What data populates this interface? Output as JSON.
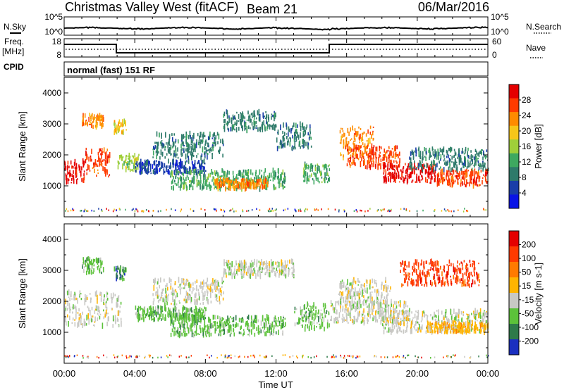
{
  "header": {
    "station": "Christmas Valley West (fitACF)",
    "beam": "Beam 21",
    "date": "06/Mar/2016"
  },
  "side_labels": {
    "nsky": "N.Sky",
    "nsearch": "N.Search",
    "freq": "Freq.",
    "freq_unit": "[MHz]",
    "nave": "Nave",
    "cpid": "CPID",
    "cpid_value": "normal (fast) 151 RF"
  },
  "noise_axis": {
    "left_ticks": [
      "10^5",
      "10^0"
    ],
    "right_ticks": [
      "10^5",
      "10^0"
    ]
  },
  "freq_axis": {
    "left_ticks": [
      "18",
      "8"
    ],
    "right_ticks": [
      "60",
      "0"
    ]
  },
  "chart_data": [
    {
      "type": "heatmap",
      "title": "",
      "quantity": "Power",
      "colorbar_label": "Power [dB]",
      "colorbar_ticks": [
        "28",
        "24",
        "20",
        "16",
        "12",
        "8",
        "4"
      ],
      "ylabel": "Slant Range [km]",
      "xlabel": "",
      "xlim": [
        0,
        24
      ],
      "ylim": [
        0,
        4500
      ],
      "y_ticks": [
        "4000",
        "3000",
        "2000",
        "1000"
      ],
      "colors": [
        "#0a14e6",
        "#1a3ea8",
        "#2e7a6a",
        "#3ea860",
        "#9fcf3a",
        "#f6c619",
        "#ff8b00",
        "#ff3b00",
        "#e40000"
      ],
      "echo_bands": [
        {
          "t": [
            0.0,
            1.2
          ],
          "range": [
            1100,
            1800
          ],
          "level": 8
        },
        {
          "t": [
            1.2,
            2.6
          ],
          "range": [
            1300,
            2200
          ],
          "level": 7
        },
        {
          "t": [
            1.0,
            2.2
          ],
          "range": [
            2900,
            3300
          ],
          "level": 6
        },
        {
          "t": [
            2.8,
            3.5
          ],
          "range": [
            2700,
            3100
          ],
          "level": 5
        },
        {
          "t": [
            3.0,
            4.2
          ],
          "range": [
            1500,
            2000
          ],
          "level": 4
        },
        {
          "t": [
            4.0,
            8.0
          ],
          "range": [
            1400,
            1800
          ],
          "level": 1
        },
        {
          "t": [
            6.0,
            12.5
          ],
          "range": [
            900,
            1500
          ],
          "level": 3
        },
        {
          "t": [
            8.5,
            11.5
          ],
          "range": [
            900,
            1200
          ],
          "level": 6
        },
        {
          "t": [
            5.0,
            9.0
          ],
          "range": [
            1900,
            2700
          ],
          "level": 2
        },
        {
          "t": [
            9.0,
            12.0
          ],
          "range": [
            2800,
            3400
          ],
          "level": 2
        },
        {
          "t": [
            12.0,
            14.0
          ],
          "range": [
            2200,
            3000
          ],
          "level": 2
        },
        {
          "t": [
            13.5,
            15.0
          ],
          "range": [
            1100,
            1700
          ],
          "level": 3
        },
        {
          "t": [
            15.6,
            17.5
          ],
          "range": [
            1900,
            2900
          ],
          "level": 6
        },
        {
          "t": [
            16.0,
            19.0
          ],
          "range": [
            1600,
            2300
          ],
          "level": 7
        },
        {
          "t": [
            18.0,
            21.0
          ],
          "range": [
            1100,
            1700
          ],
          "level": 8
        },
        {
          "t": [
            21.0,
            24.0
          ],
          "range": [
            1000,
            1500
          ],
          "level": 7
        },
        {
          "t": [
            19.5,
            24.0
          ],
          "range": [
            1500,
            2200
          ],
          "level": 2
        }
      ]
    },
    {
      "type": "heatmap",
      "title": "",
      "quantity": "Velocity",
      "colorbar_label": "Velocity [m s-1]",
      "colorbar_ticks": [
        "200",
        "100",
        "50",
        "15",
        "-15",
        "-50",
        "-100",
        "-200"
      ],
      "ylabel": "Slant Range [km]",
      "xlabel": "Time UT",
      "xlim": [
        0,
        24
      ],
      "ylim": [
        0,
        4500
      ],
      "y_ticks": [
        "4000",
        "3000",
        "2000",
        "1000"
      ],
      "x_ticks": [
        "00:00",
        "04:00",
        "08:00",
        "12:00",
        "16:00",
        "20:00",
        "00:00"
      ],
      "colors": [
        "#1a2fc0",
        "#2e7a4a",
        "#5cc23a",
        "#c8c8c4",
        "#ffb400",
        "#ff7a00",
        "#ff3a00",
        "#e40000"
      ],
      "echo_bands": [
        {
          "t": [
            0.0,
            3.2
          ],
          "range": [
            1200,
            2300
          ],
          "level": 3
        },
        {
          "t": [
            1.0,
            2.2
          ],
          "range": [
            2900,
            3400
          ],
          "level": 2
        },
        {
          "t": [
            2.8,
            3.5
          ],
          "range": [
            2700,
            3100
          ],
          "level": 1
        },
        {
          "t": [
            4.0,
            8.0
          ],
          "range": [
            1400,
            1800
          ],
          "level": 2
        },
        {
          "t": [
            6.0,
            12.5
          ],
          "range": [
            900,
            1500
          ],
          "level": 2
        },
        {
          "t": [
            5.0,
            9.0
          ],
          "range": [
            1900,
            2700
          ],
          "level": 3
        },
        {
          "t": [
            9.0,
            13.0
          ],
          "range": [
            2800,
            3300
          ],
          "level": 3
        },
        {
          "t": [
            13.0,
            15.0
          ],
          "range": [
            1100,
            1900
          ],
          "level": 2
        },
        {
          "t": [
            15.5,
            18.5
          ],
          "range": [
            1900,
            2700
          ],
          "level": 3
        },
        {
          "t": [
            15.0,
            19.5
          ],
          "range": [
            1300,
            2000
          ],
          "level": 3
        },
        {
          "t": [
            18.0,
            24.0
          ],
          "range": [
            1000,
            1700
          ],
          "level": 3
        },
        {
          "t": [
            19.0,
            23.5
          ],
          "range": [
            2500,
            3300
          ],
          "level": 6
        },
        {
          "t": [
            20.5,
            24.0
          ],
          "range": [
            1000,
            1300
          ],
          "level": 4
        }
      ]
    }
  ]
}
